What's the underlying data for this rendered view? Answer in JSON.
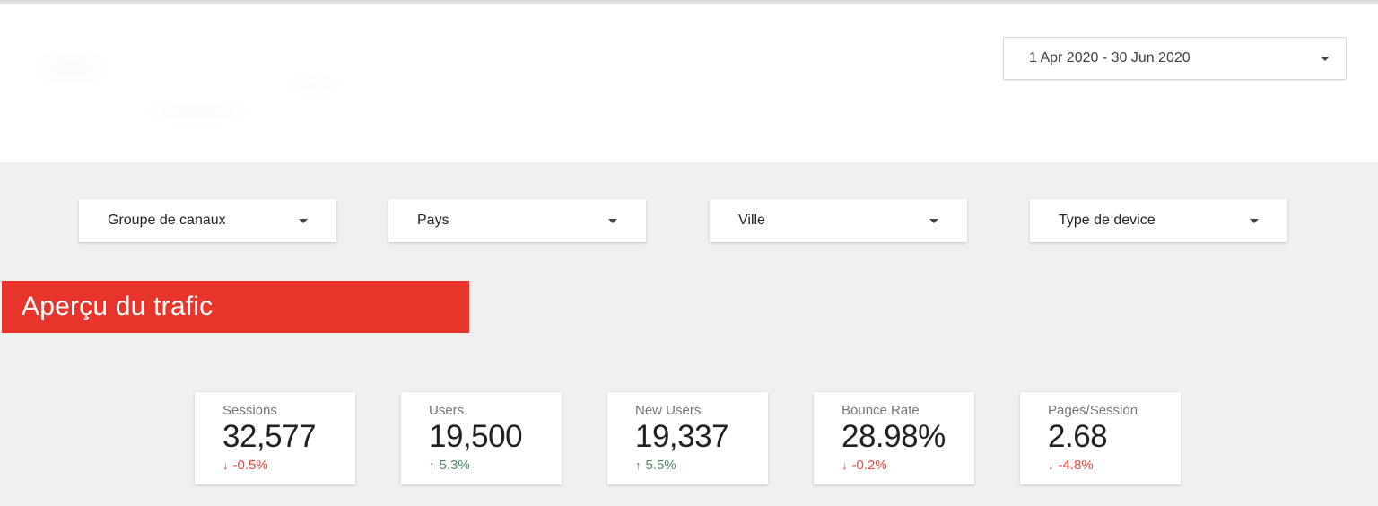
{
  "date_range": {
    "label": "1 Apr 2020 - 30 Jun 2020"
  },
  "filters": [
    {
      "label": "Groupe de canaux"
    },
    {
      "label": "Pays"
    },
    {
      "label": "Ville"
    },
    {
      "label": "Type de device"
    }
  ],
  "section": {
    "title": "Aperçu du trafic"
  },
  "scorecards": [
    {
      "label": "Sessions",
      "value": "32,577",
      "delta": "-0.5%",
      "direction": "down"
    },
    {
      "label": "Users",
      "value": "19,500",
      "delta": "5.3%",
      "direction": "up"
    },
    {
      "label": "New Users",
      "value": "19,337",
      "delta": "5.5%",
      "direction": "up"
    },
    {
      "label": "Bounce Rate",
      "value": "28.98%",
      "delta": "-0.2%",
      "direction": "down"
    },
    {
      "label": "Pages/Session",
      "value": "2.68",
      "delta": "-4.8%",
      "direction": "down"
    }
  ],
  "colors": {
    "banner_red": "#e8352b",
    "delta_up_green": "#4c8c5c",
    "delta_down_red": "#e5493f",
    "body_bg": "#f0f0ee",
    "header_bg": "#ffffff"
  }
}
